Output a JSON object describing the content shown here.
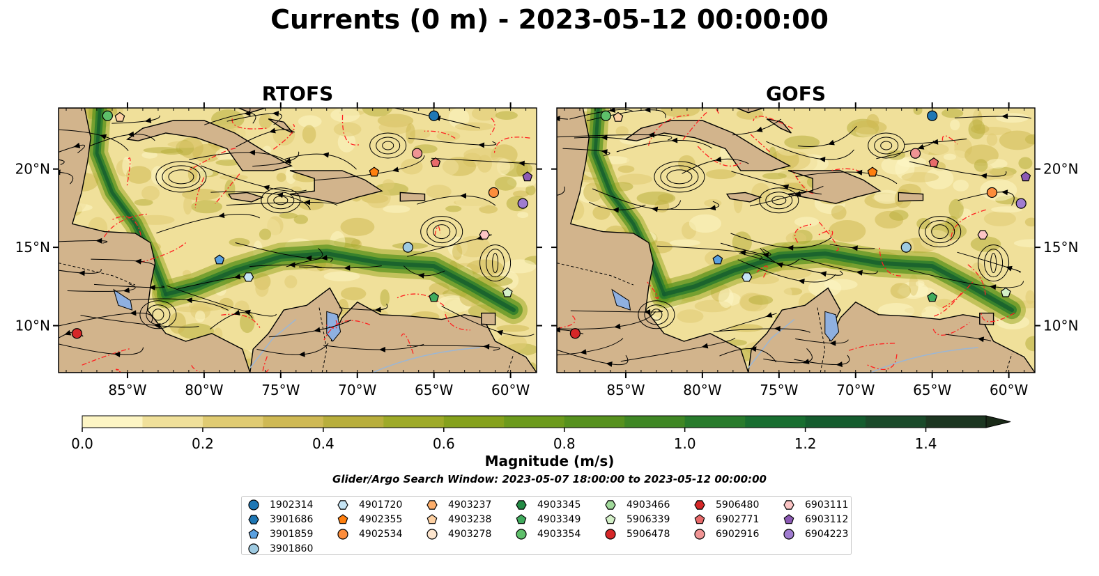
{
  "title": "Currents (0 m) - 2023-05-12 00:00:00",
  "panels": [
    {
      "title": "RTOFS"
    },
    {
      "title": "GOFS"
    }
  ],
  "colors": {
    "land": "#d2b48c",
    "lake": "#8fb0e0",
    "frontier": "#ff2020"
  },
  "chart_data": {
    "type": "heatmap",
    "x_ticks": [
      -85,
      -80,
      -75,
      -70,
      -65,
      -60
    ],
    "x_tick_labels": [
      "85°W",
      "80°W",
      "75°W",
      "70°W",
      "65°W",
      "60°W"
    ],
    "y_ticks": [
      10,
      15,
      20
    ],
    "y_tick_labels": [
      "10°N",
      "15°N",
      "20°N"
    ],
    "xlim": [
      -89.5,
      -58.3
    ],
    "ylim": [
      7.0,
      23.9
    ],
    "colorbar": {
      "label": "Magnitude (m/s)",
      "range": [
        0.0,
        1.5
      ],
      "ticks": [
        0.0,
        0.2,
        0.4,
        0.6,
        0.8,
        1.0,
        1.2,
        1.4
      ],
      "tick_labels": [
        "0.0",
        "0.2",
        "0.4",
        "0.6",
        "0.8",
        "1.0",
        "1.2",
        "1.4"
      ],
      "extend": "max",
      "colors": [
        "#fdf5c4",
        "#f0e09a",
        "#e0cb72",
        "#cfb954",
        "#b8ae3c",
        "#9eaa28",
        "#85a11c",
        "#6c9a1c",
        "#56911e",
        "#3f8724",
        "#287b2c",
        "#186e30",
        "#145c2e",
        "#1a4a2a",
        "#1c3621"
      ]
    },
    "subtitle": "Glider/Argo Search Window: 2023-05-07 18:00:00 to 2023-05-12 00:00:00",
    "floats": [
      {
        "id": "1902314",
        "marker": "circle",
        "color": "#1f77b4",
        "lon": -65.0,
        "lat": 23.4
      },
      {
        "id": "3901686",
        "marker": "hexagon",
        "color": "#1f77b4",
        "lon": null,
        "lat": null
      },
      {
        "id": "3901859",
        "marker": "pentagon",
        "color": "#5aa0e0",
        "lon": -79.0,
        "lat": 14.2
      },
      {
        "id": "3901860",
        "marker": "circle",
        "color": "#9ecae1",
        "lon": -66.7,
        "lat": 15.0
      },
      {
        "id": "4901720",
        "marker": "hexagon",
        "color": "#c6e5f5",
        "lon": -77.1,
        "lat": 13.1
      },
      {
        "id": "4902355",
        "marker": "pentagon",
        "color": "#ff7f0e",
        "lon": -68.9,
        "lat": 19.8
      },
      {
        "id": "4902534",
        "marker": "circle",
        "color": "#fd8d3c",
        "lon": -61.1,
        "lat": 18.5
      },
      {
        "id": "4903237",
        "marker": "hexagon",
        "color": "#fdae6b",
        "lon": null,
        "lat": null
      },
      {
        "id": "4903238",
        "marker": "pentagon",
        "color": "#fdd0a2",
        "lon": -85.5,
        "lat": 23.3
      },
      {
        "id": "4903278",
        "marker": "circle",
        "color": "#fee6ce",
        "lon": null,
        "lat": null
      },
      {
        "id": "4903345",
        "marker": "hexagon",
        "color": "#238b45",
        "lon": null,
        "lat": null
      },
      {
        "id": "4903349",
        "marker": "pentagon",
        "color": "#41ab5d",
        "lon": -65.0,
        "lat": 11.8
      },
      {
        "id": "4903354",
        "marker": "circle",
        "color": "#5ebf6a",
        "lon": -86.3,
        "lat": 23.4
      },
      {
        "id": "4903466",
        "marker": "hexagon",
        "color": "#a1d99b",
        "lon": null,
        "lat": null
      },
      {
        "id": "5906339",
        "marker": "pentagon",
        "color": "#d4f0c8",
        "lon": -60.2,
        "lat": 12.1
      },
      {
        "id": "5906478",
        "marker": "circle",
        "color": "#d62728",
        "lon": -88.3,
        "lat": 9.5
      },
      {
        "id": "5906480",
        "marker": "hexagon",
        "color": "#d62728",
        "lon": null,
        "lat": null
      },
      {
        "id": "6902771",
        "marker": "pentagon",
        "color": "#e86a6a",
        "lon": -64.9,
        "lat": 20.4
      },
      {
        "id": "6902916",
        "marker": "circle",
        "color": "#f09494",
        "lon": -66.1,
        "lat": 21.0
      },
      {
        "id": "6903111",
        "marker": "hexagon",
        "color": "#fbc4c4",
        "lon": -61.7,
        "lat": 15.8
      },
      {
        "id": "6903112",
        "marker": "pentagon",
        "color": "#8c5ab4",
        "lon": -58.9,
        "lat": 19.5
      },
      {
        "id": "6904223",
        "marker": "circle",
        "color": "#a07cd0",
        "lon": -59.2,
        "lat": 17.8
      }
    ]
  }
}
